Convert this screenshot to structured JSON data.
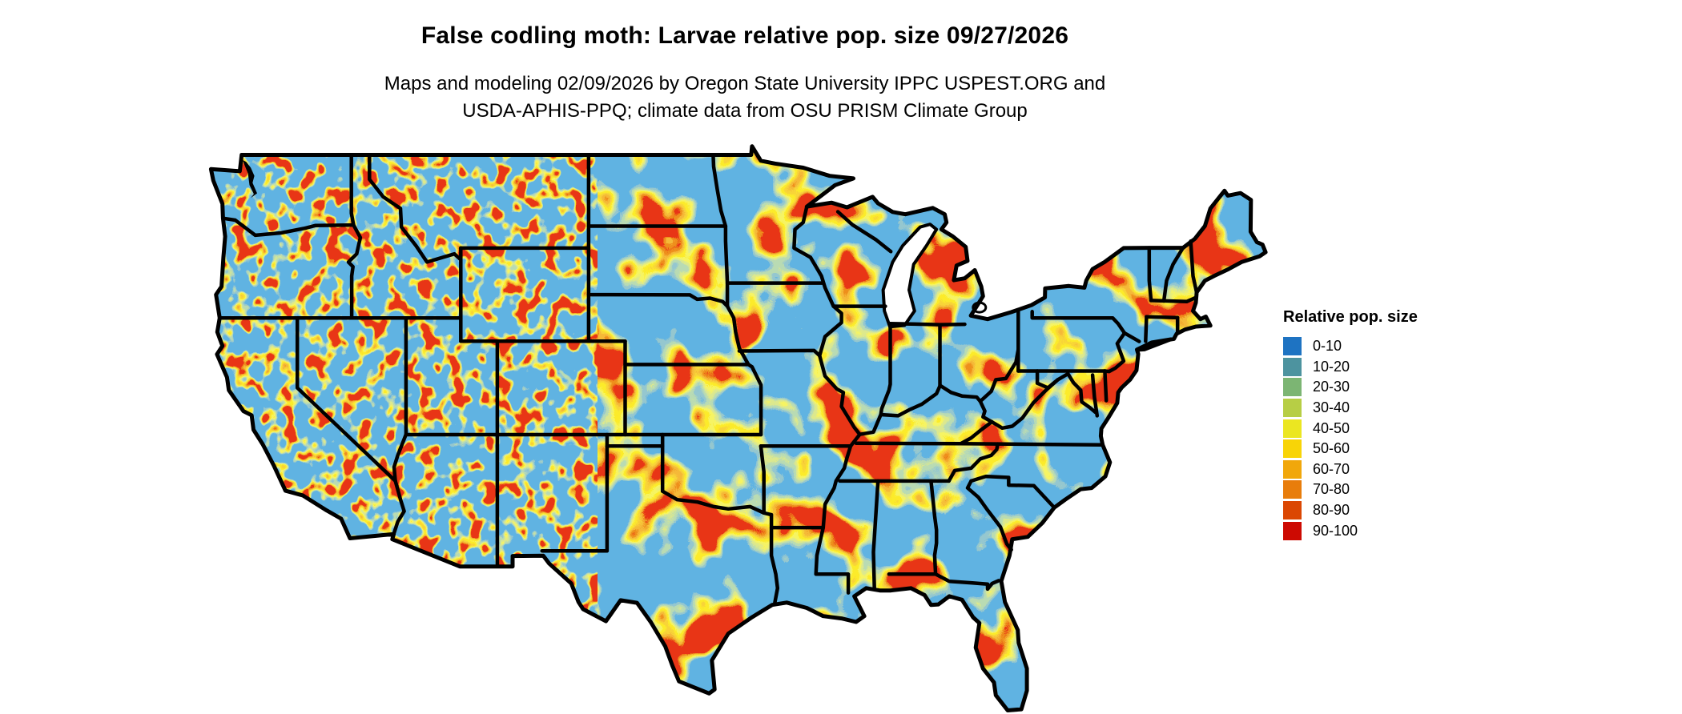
{
  "header": {
    "title": "False codling moth: Larvae relative pop. size 09/27/2026",
    "subtitle_line1": "Maps and modeling 02/09/2026 by Oregon State University IPPC USPEST.ORG and",
    "subtitle_line2": "USDA-APHIS-PPQ; climate data from OSU PRISM Climate Group"
  },
  "legend": {
    "title": "Relative pop. size",
    "items": [
      {
        "label": "0-10",
        "color": "#1E73C2"
      },
      {
        "label": "10-20",
        "color": "#4D939F"
      },
      {
        "label": "20-30",
        "color": "#7CB573"
      },
      {
        "label": "30-40",
        "color": "#B7CE45"
      },
      {
        "label": "40-50",
        "color": "#EBE621"
      },
      {
        "label": "50-60",
        "color": "#F8D407"
      },
      {
        "label": "60-70",
        "color": "#F1A70B"
      },
      {
        "label": "70-80",
        "color": "#E87D0B"
      },
      {
        "label": "80-90",
        "color": "#DB4703"
      },
      {
        "label": "90-100",
        "color": "#CD0A02"
      }
    ]
  },
  "map": {
    "water_color": "#FFFFFF",
    "border_color": "#000000"
  }
}
